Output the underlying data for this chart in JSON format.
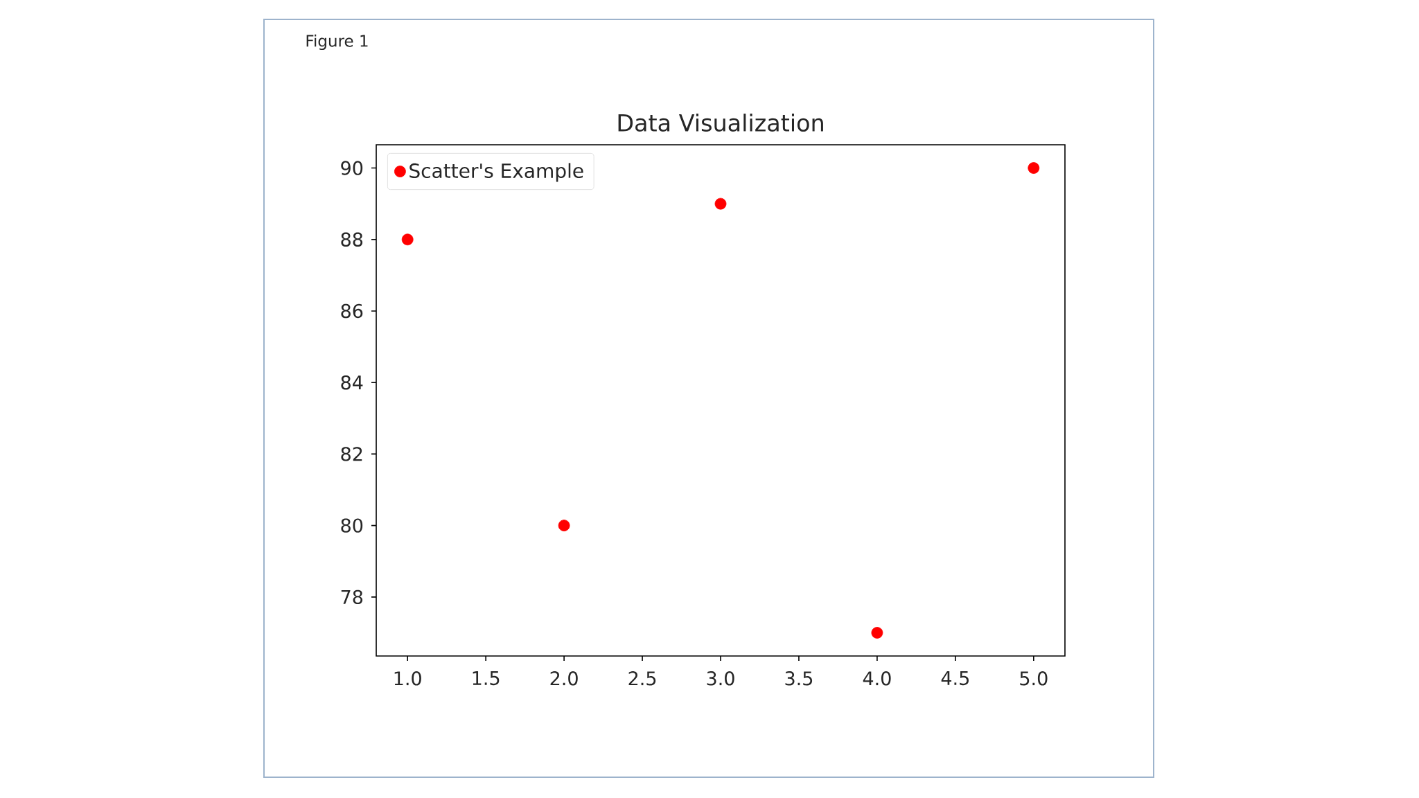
{
  "chart_data": {
    "type": "scatter",
    "title": "Data Visualization",
    "annotations": [
      "Figure 1"
    ],
    "x": [
      1,
      2,
      3,
      4,
      5
    ],
    "series": [
      {
        "name": "Scatter's Example",
        "color": "#ff0000",
        "values": [
          88,
          80,
          89,
          77,
          90
        ]
      }
    ],
    "xlim": [
      0.8,
      5.2
    ],
    "ylim": [
      76.35,
      90.65
    ],
    "xticks": [
      {
        "value": 1,
        "label": "1.0"
      },
      1.5,
      {
        "value": 2,
        "label": "2.0"
      },
      2.5,
      {
        "value": 3,
        "label": "3.0"
      },
      3.5,
      {
        "value": 4,
        "label": "4.0"
      },
      4.5,
      {
        "value": 5,
        "label": "5.0"
      }
    ],
    "yticks": [
      78,
      80,
      82,
      84,
      86,
      88,
      90
    ],
    "legend": "top left",
    "marker": "circle"
  }
}
